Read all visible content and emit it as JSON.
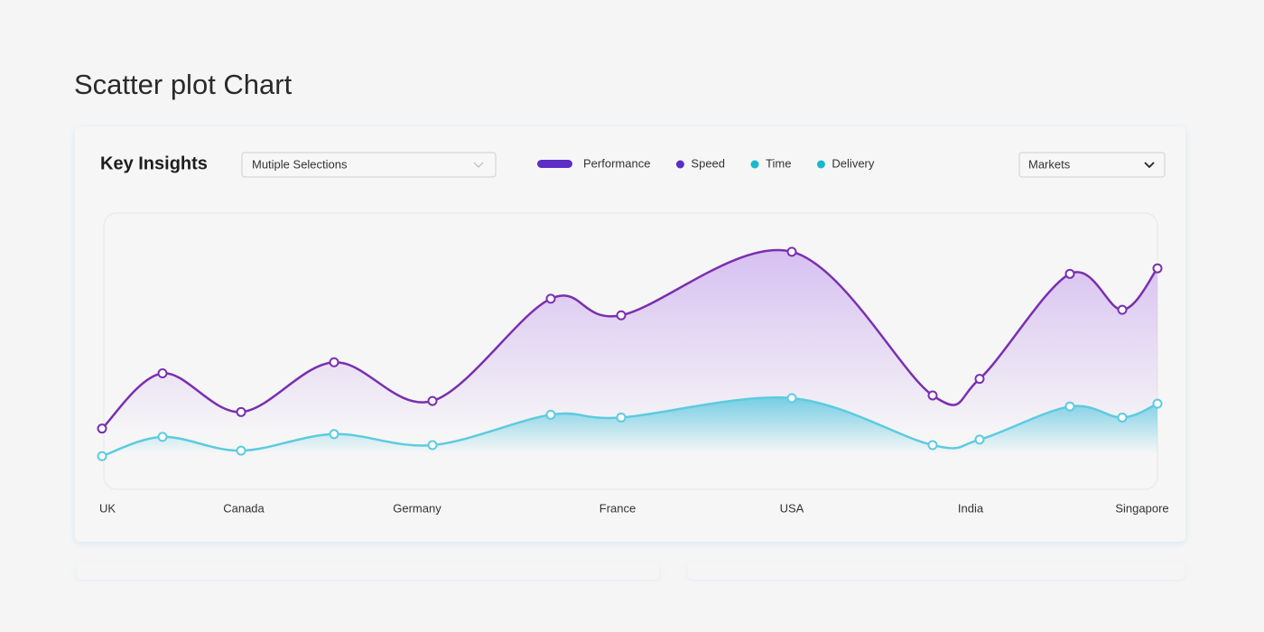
{
  "page_title": "Scatter plot Chart",
  "card_title": "Key Insights",
  "selection_dropdown": "Mutiple Selections",
  "markets_dropdown": "Markets",
  "chart_data": {
    "type": "line",
    "smooth": true,
    "area": true,
    "legend": [
      {
        "name": "Performance",
        "color": "#5b2ec4",
        "shape": "pill"
      },
      {
        "name": "Speed",
        "color": "#5b2ec4",
        "shape": "dot"
      },
      {
        "name": "Time",
        "color": "#1bb8cc",
        "shape": "dot"
      },
      {
        "name": "Delivery",
        "color": "#1bb8cc",
        "shape": "dot"
      }
    ],
    "x": [
      0,
      67,
      154,
      257,
      366,
      497,
      575,
      764,
      920,
      972,
      1072,
      1130,
      1169
    ],
    "xlim": [
      0,
      1169
    ],
    "xticks": [
      {
        "value": 6,
        "label": "UK"
      },
      {
        "value": 157,
        "label": "Canada"
      },
      {
        "value": 349,
        "label": "Germany"
      },
      {
        "value": 571,
        "label": "France"
      },
      {
        "value": 764,
        "label": "USA"
      },
      {
        "value": 962,
        "label": "India"
      },
      {
        "value": 1152,
        "label": "Singapore"
      }
    ],
    "ylim": [
      0,
      100
    ],
    "series": [
      {
        "color": "#7a2fb0",
        "fill": "#cfb3f0",
        "values": [
          22,
          42,
          28,
          46,
          32,
          69,
          63,
          86,
          34,
          40,
          78,
          65,
          80
        ]
      },
      {
        "color": "#5ccbe0",
        "fill": "#5cc8e0",
        "values": [
          12,
          19,
          14,
          20,
          16,
          27,
          26,
          33,
          16,
          18,
          30,
          26,
          31
        ]
      }
    ]
  }
}
